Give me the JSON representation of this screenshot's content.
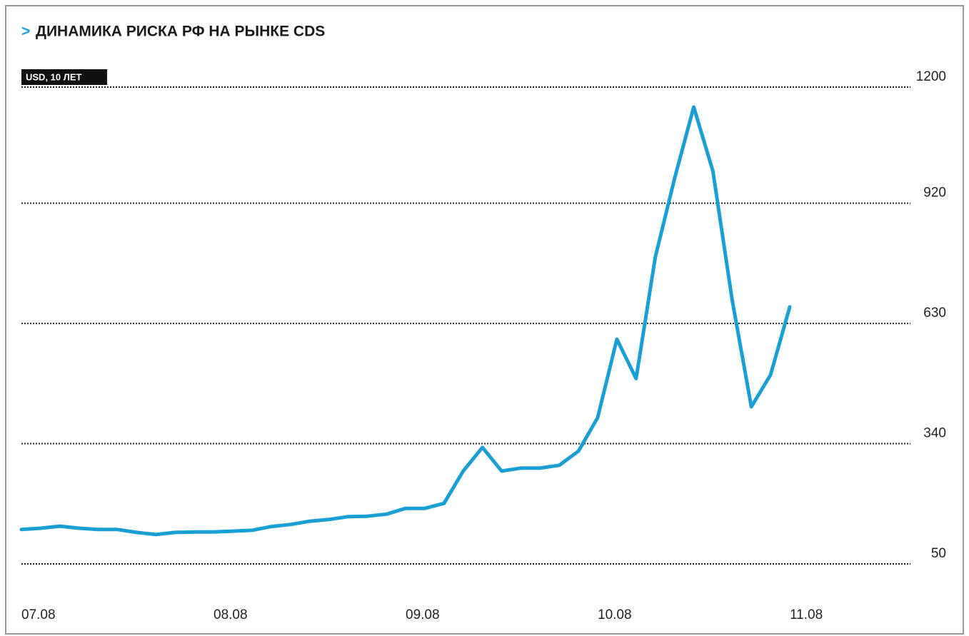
{
  "chart_data": {
    "type": "line",
    "marker": ">",
    "title": "ДИНАМИКА РИСКА РФ НА РЫНКЕ CDS",
    "subtitle": "USD, 10 ЛЕТ",
    "categories": [
      "07.08",
      null,
      null,
      null,
      null,
      null,
      null,
      null,
      null,
      null,
      "08.08",
      null,
      null,
      null,
      null,
      null,
      null,
      null,
      null,
      null,
      "09.08",
      null,
      null,
      null,
      null,
      null,
      null,
      null,
      null,
      null,
      "10.08",
      null,
      null,
      null,
      null,
      null,
      null,
      null,
      null,
      null,
      "11.08"
    ],
    "series": [
      {
        "name": "CDS",
        "color": "#1a9fd4",
        "values": [
          133,
          136,
          141,
          136,
          133,
          133,
          126,
          121,
          126,
          127,
          127,
          129,
          131,
          140,
          145,
          153,
          157,
          164,
          165,
          170,
          184,
          184,
          196,
          274,
          331,
          274,
          281,
          281,
          288,
          322,
          403,
          592,
          497,
          790,
          979,
          1152,
          997,
          687,
          429,
          506,
          670
        ]
      }
    ],
    "ylim": [
      50,
      1200
    ],
    "yticks": [
      50,
      340,
      630,
      920,
      1200
    ],
    "grid": true
  }
}
